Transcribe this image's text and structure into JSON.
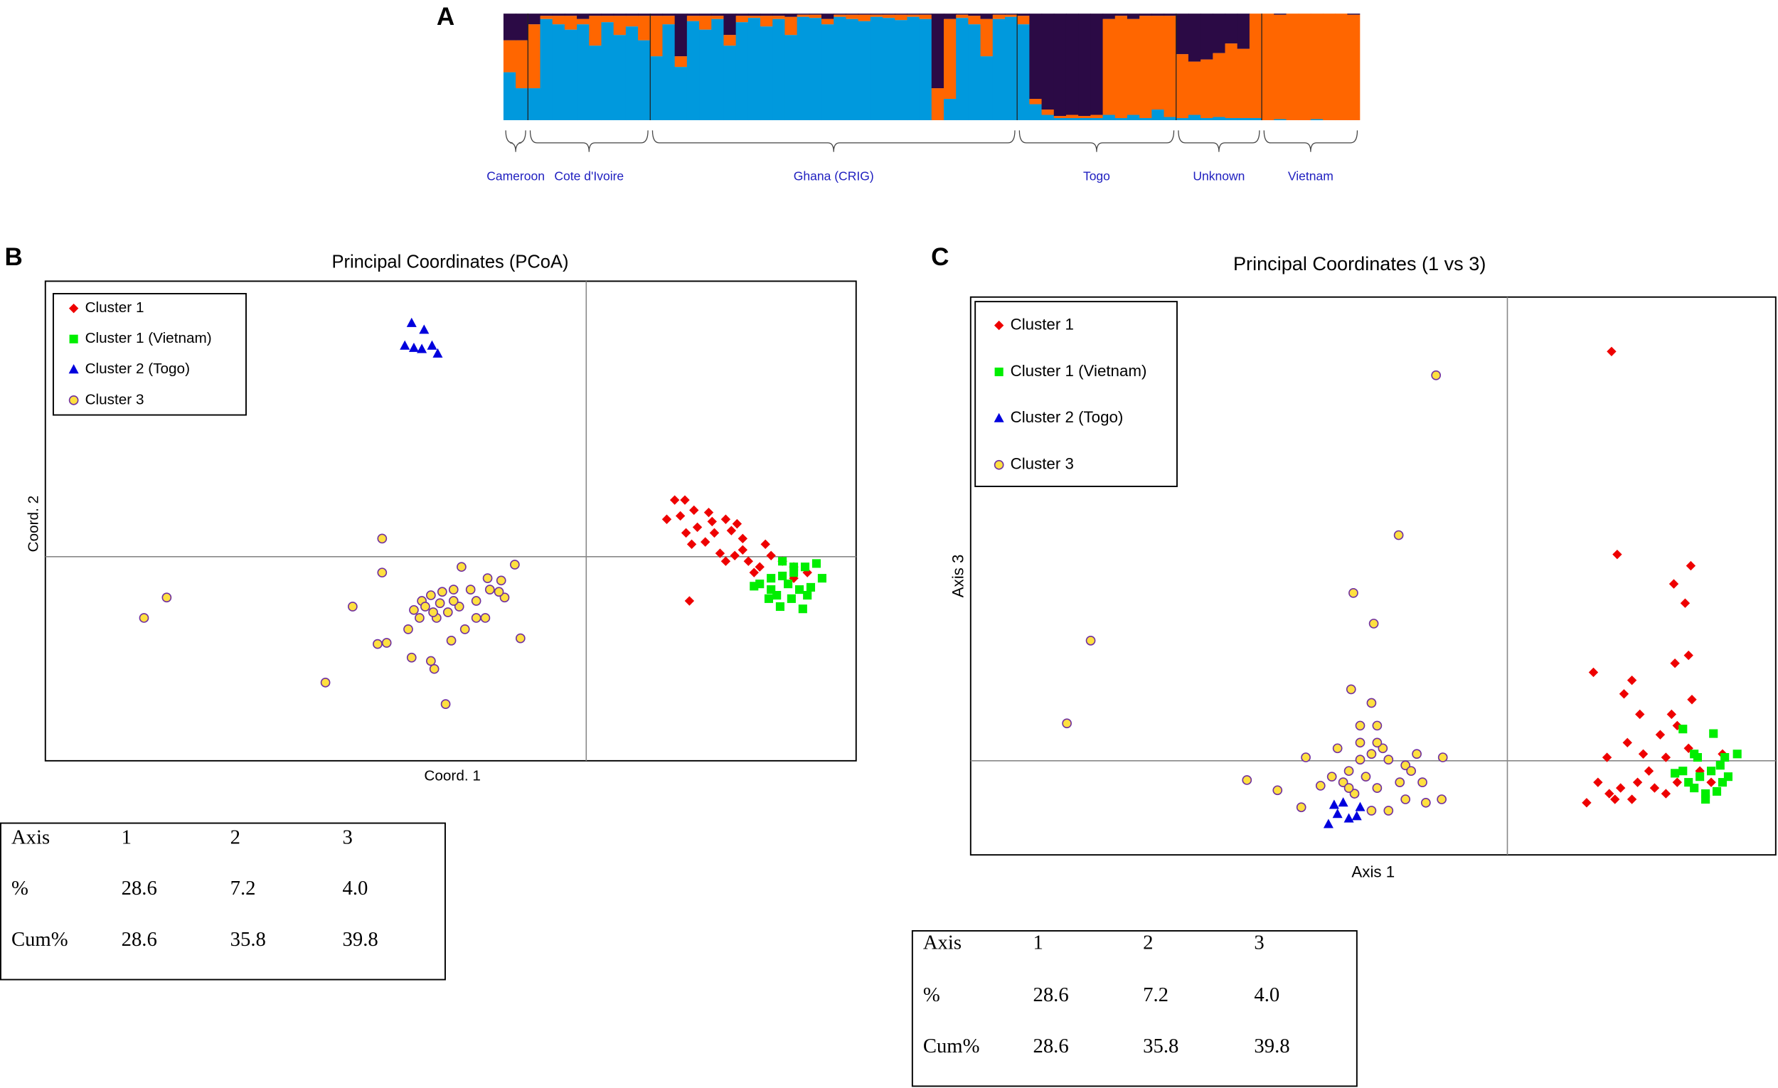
{
  "chart_data": [
    {
      "type": "stacked_bar",
      "panel": "A",
      "ylim": [
        0,
        1
      ],
      "categories": [
        null,
        null,
        null,
        null,
        null,
        null,
        null,
        null,
        null,
        null,
        null,
        null,
        null,
        null,
        null,
        null,
        null,
        null,
        null,
        null,
        null,
        null,
        null,
        null,
        null,
        null,
        null,
        null,
        null,
        null,
        null,
        null,
        null,
        null,
        null,
        null,
        null,
        null,
        null,
        null,
        null,
        null,
        null,
        null,
        null,
        null,
        null,
        null,
        null,
        null,
        null,
        null,
        null,
        null,
        null,
        null,
        null,
        null,
        null,
        null,
        null,
        null,
        null,
        null,
        null,
        null,
        null,
        null,
        null,
        null
      ],
      "groups": [
        {
          "name": "Cameroon",
          "count": 2
        },
        {
          "name": "Cote d'Ivoire",
          "count": 10
        },
        {
          "name": "Ghana (CRIG)",
          "count": 30
        },
        {
          "name": "Togo",
          "count": 13
        },
        {
          "name": "Unknown",
          "count": 7
        },
        {
          "name": "Vietnam",
          "count": 8
        }
      ],
      "series": [
        {
          "color": "#0099dd",
          "values": [
            0.45,
            0.3,
            0.3,
            0.95,
            0.9,
            0.85,
            0.9,
            0.7,
            0.92,
            0.8,
            0.88,
            0.75,
            0.6,
            0.9,
            0.5,
            0.93,
            0.85,
            0.95,
            0.7,
            0.92,
            0.96,
            0.88,
            0.95,
            0.8,
            0.97,
            0.96,
            0.9,
            0.97,
            0.95,
            0.93,
            0.97,
            0.96,
            0.94,
            0.97,
            0.95,
            0.0,
            0.2,
            0.96,
            0.9,
            0.6,
            0.95,
            0.97,
            0.9,
            0.15,
            0.05,
            0.02,
            0.02,
            0.02,
            0.02,
            0.05,
            0.02,
            0.05,
            0.02,
            0.1,
            0.03,
            0.02,
            0.05,
            0.02,
            0.03,
            0.02,
            0.02,
            0.02,
            0,
            0.01,
            0,
            0,
            0.01,
            0,
            0,
            0
          ]
        },
        {
          "color": "#ff6600",
          "values": [
            0.3,
            0.45,
            0.6,
            0.03,
            0.08,
            0.13,
            0.05,
            0.28,
            0.06,
            0.18,
            0.1,
            0.23,
            0.38,
            0.08,
            0.1,
            0.05,
            0.13,
            0.03,
            0.1,
            0.06,
            0.02,
            0.1,
            0.03,
            0.17,
            0.02,
            0.03,
            0.05,
            0.02,
            0.04,
            0.06,
            0.02,
            0.03,
            0.05,
            0.02,
            0.04,
            0.3,
            0.75,
            0.03,
            0.08,
            0.35,
            0.04,
            0.02,
            0.08,
            0.05,
            0.05,
            0.02,
            0.03,
            0.02,
            0.03,
            0.9,
            0.96,
            0.9,
            0.96,
            0.88,
            0.95,
            0.6,
            0.5,
            0.55,
            0.6,
            0.7,
            0.65,
            0.98,
            1,
            0.98,
            1,
            1,
            0.99,
            1,
            1,
            0.99
          ]
        },
        {
          "color": "#2b0a45",
          "values": [
            0.25,
            0.25,
            0.1,
            0.02,
            0.02,
            0.02,
            0.05,
            0.02,
            0.02,
            0.02,
            0.02,
            0.02,
            0.02,
            0.02,
            0.4,
            0.02,
            0.02,
            0.02,
            0.2,
            0.02,
            0.02,
            0.02,
            0.02,
            0.03,
            0.01,
            0.01,
            0.05,
            0.01,
            0.01,
            0.01,
            0.01,
            0.01,
            0.01,
            0.01,
            0.01,
            0.7,
            0.05,
            0.01,
            0.02,
            0.05,
            0.01,
            0.01,
            0.02,
            0.8,
            0.9,
            0.96,
            0.95,
            0.96,
            0.95,
            0.05,
            0.02,
            0.05,
            0.02,
            0.02,
            0.02,
            0.38,
            0.45,
            0.43,
            0.37,
            0.28,
            0.33,
            0,
            0,
            0.01,
            0,
            0,
            0,
            0,
            0,
            0.01
          ]
        }
      ]
    },
    {
      "type": "scatter",
      "panel": "B",
      "title": "Principal Coordinates (PCoA)",
      "x_label": "Coord. 1",
      "y_label": "Coord. 2",
      "xlim": [
        -47.7,
        23.8
      ],
      "ylim": [
        -18.0,
        24.3
      ],
      "legend": "top-left",
      "series": [
        {
          "name": "Cluster 1",
          "color": "#ee0000",
          "marker": "diamond",
          "x": [
            7.8,
            8.7,
            7.1,
            8.3,
            9.5,
            10.8,
            12.3,
            8.8,
            9.8,
            11.3,
            12.8,
            13.8,
            9.3,
            10.5,
            11.8,
            13.1,
            14.3,
            15.3,
            16.3,
            17.3,
            18.3,
            14.8,
            12.3,
            13.8,
            15.8,
            9.1,
            18.3,
            19.5,
            11.1,
            13.3
          ],
          "values": [
            5.0,
            5.0,
            3.3,
            3.6,
            4.1,
            3.9,
            3.3,
            2.1,
            2.6,
            2.1,
            2.3,
            1.6,
            1.1,
            1.3,
            0.3,
            0.1,
            -0.4,
            -0.9,
            0.1,
            -0.4,
            -0.9,
            -1.4,
            -0.4,
            0.6,
            1.1,
            -3.9,
            -1.9,
            -1.4,
            3.1,
            2.9
          ]
        },
        {
          "name": "Cluster 1 (Vietnam)",
          "color": "#00ee00",
          "marker": "square",
          "x": [
            20.3,
            20.8,
            19.3,
            18.3,
            17.3,
            16.3,
            15.3,
            14.8,
            16.3,
            17.8,
            18.8,
            19.8,
            16.8,
            18.1,
            19.1,
            17.1,
            16.1,
            18.3,
            17.3,
            19.5
          ],
          "values": [
            -0.6,
            -1.9,
            -0.9,
            -1.4,
            -1.7,
            -1.9,
            -2.4,
            -2.6,
            -2.9,
            -2.4,
            -2.9,
            -2.7,
            -3.4,
            -3.7,
            -4.6,
            -4.4,
            -3.7,
            -0.9,
            -0.4,
            -3.4
          ]
        },
        {
          "name": "Cluster 2 (Togo)",
          "color": "#0000dd",
          "marker": "triangle",
          "x": [
            -15.4,
            -14.3,
            -16.0,
            -15.2,
            -14.5,
            -13.1,
            -13.6
          ],
          "values": [
            20.6,
            20.0,
            18.6,
            18.4,
            18.3,
            17.9,
            18.6
          ]
        },
        {
          "name": "Cluster 3",
          "color": "#ffe040",
          "marker": "circle",
          "x": [
            -39.0,
            -37.0,
            -23.0,
            -18.0,
            -18.0,
            -20.6,
            -18.4,
            -17.6,
            -15.4,
            -13.7,
            -13.4,
            -12.4,
            -11.0,
            -8.7,
            -7.5,
            -6.3,
            -5.8,
            -7.2,
            -10.2,
            -11.7,
            -12.7,
            -13.7,
            -14.5,
            -15.2,
            -14.7,
            -13.2,
            -12.2,
            -11.2,
            -9.7,
            -8.5,
            -8.9,
            -10.7,
            -11.9,
            -15.7,
            -14.2,
            -12.9,
            -11.7,
            -13.5,
            -9.7,
            -7.7
          ],
          "values": [
            -5.4,
            -3.6,
            -11.1,
            1.6,
            -1.4,
            -4.4,
            -7.7,
            -7.6,
            -8.9,
            -9.2,
            -9.9,
            -13.0,
            -0.9,
            -1.9,
            -2.1,
            -0.7,
            -7.2,
            -3.6,
            -2.9,
            -2.9,
            -3.1,
            -3.4,
            -3.9,
            -4.7,
            -5.4,
            -5.4,
            -4.9,
            -4.4,
            -3.9,
            -2.9,
            -5.4,
            -6.4,
            -7.4,
            -6.4,
            -4.4,
            -4.1,
            -3.9,
            -4.9,
            -5.4,
            -3.1
          ]
        }
      ]
    },
    {
      "type": "scatter",
      "panel": "C",
      "title": "Principal Coordinates (1 vs 3)",
      "x_label": "Axis 1",
      "y_label": "Axis 3",
      "xlim": [
        -47.4,
        23.7
      ],
      "ylim": [
        -8.3,
        40.9
      ],
      "legend": "top-left",
      "series": [
        {
          "name": "Cluster 1",
          "color": "#ee0000",
          "marker": "diamond",
          "x": [
            9.2,
            9.7,
            16.2,
            14.7,
            15.7,
            16.0,
            14.8,
            7.6,
            11.0,
            10.3,
            16.3,
            11.7,
            14.5,
            15.0,
            10.6,
            13.5,
            8.8,
            12.0,
            16.0,
            19.0,
            7.0,
            8.0,
            9.0,
            10.0,
            11.5,
            13.0,
            14.0,
            15.0,
            9.5,
            11.0,
            12.5,
            17.0,
            18.0,
            14.0
          ],
          "values": [
            36.1,
            18.2,
            17.2,
            15.6,
            13.9,
            9.3,
            8.6,
            7.8,
            7.1,
            5.9,
            5.4,
            4.1,
            4.1,
            3.1,
            1.6,
            2.3,
            0.3,
            0.6,
            1.1,
            0.6,
            -3.7,
            -1.9,
            -2.9,
            -2.4,
            -1.9,
            -2.4,
            -2.9,
            -1.9,
            -3.4,
            -3.4,
            -0.9,
            -0.9,
            -1.9,
            0.3
          ]
        },
        {
          "name": "Cluster 1 (Vietnam)",
          "color": "#00ee00",
          "marker": "square",
          "x": [
            15.5,
            18.2,
            20.3,
            19.2,
            16.8,
            14.8,
            16.0,
            17.0,
            18.0,
            19.0,
            17.5,
            16.5,
            18.5,
            15.5,
            19.5,
            17.5,
            16.5,
            18.8
          ],
          "values": [
            2.8,
            2.4,
            0.6,
            0.3,
            0.3,
            -1.1,
            -1.9,
            -1.4,
            -0.9,
            -1.9,
            -2.9,
            -2.4,
            -2.7,
            -0.9,
            -1.4,
            -3.4,
            0.6,
            -0.4
          ]
        },
        {
          "name": "Cluster 2 (Togo)",
          "color": "#0000dd",
          "marker": "triangle",
          "x": [
            -15.8,
            -15.0,
            -14.5,
            -15.3,
            -13.3,
            -13.0,
            -14.0
          ],
          "values": [
            -5.6,
            -4.7,
            -3.7,
            -3.9,
            -4.9,
            -4.1,
            -5.1
          ]
        },
        {
          "name": "Cluster 3",
          "color": "#ffe040",
          "marker": "circle",
          "x": [
            -6.3,
            -9.6,
            -13.6,
            -11.8,
            -36.8,
            -38.9,
            -13.8,
            -12.0,
            -13.0,
            -11.5,
            -8.0,
            -5.7,
            -17.8,
            -23.0,
            -20.3,
            -18.2,
            -15.5,
            -14.0,
            -13.0,
            -12.0,
            -10.5,
            -9.0,
            -7.5,
            -5.8,
            -7.2,
            -9.0,
            -10.5,
            -12.0,
            -13.5,
            -14.5,
            -16.5,
            -15.0,
            -13.0,
            -11.0,
            -9.5,
            -11.5,
            -12.5,
            -14.0,
            -8.5,
            -11.5
          ],
          "values": [
            34.0,
            19.9,
            14.8,
            12.1,
            10.6,
            3.3,
            6.3,
            5.1,
            3.1,
            3.1,
            0.6,
            0.3,
            0.3,
            -1.7,
            -2.6,
            -4.1,
            -1.4,
            -0.9,
            0.1,
            0.6,
            0.1,
            -0.4,
            -1.9,
            -3.4,
            -3.7,
            -3.4,
            -4.4,
            -4.4,
            -2.9,
            -1.9,
            -2.2,
            1.1,
            1.6,
            1.1,
            -1.9,
            -2.4,
            -1.4,
            -2.4,
            -0.9,
            1.6
          ]
        }
      ]
    }
  ],
  "tables": [
    {
      "rows": [
        [
          "Axis",
          "1",
          "2",
          "3"
        ],
        [
          "%",
          "28.6",
          "7.2",
          "4.0"
        ],
        [
          "Cum%",
          "28.6",
          "35.8",
          "39.8"
        ]
      ]
    },
    {
      "rows": [
        [
          "Axis",
          "1",
          "2",
          "3"
        ],
        [
          "%",
          "28.6",
          "7.2",
          "4.0"
        ],
        [
          "Cum%",
          "28.6",
          "35.8",
          "39.8"
        ]
      ]
    }
  ]
}
